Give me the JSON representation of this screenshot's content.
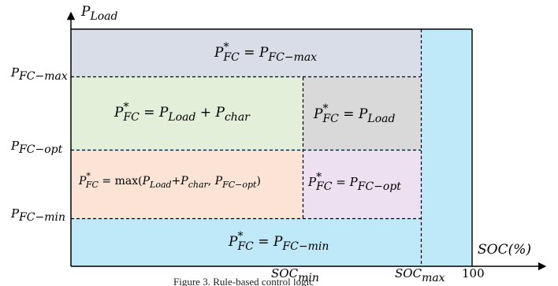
{
  "axes": {
    "y_label": {
      "base": "P",
      "sub": "Load"
    },
    "x_label": "SOC(%)",
    "y_ticks": {
      "fc_max": {
        "base": "P",
        "sub": "FC−max"
      },
      "fc_opt": {
        "base": "P",
        "sub": "FC−opt"
      },
      "fc_min": {
        "base": "P",
        "sub": "FC−min"
      }
    },
    "x_ticks": {
      "soc_min": {
        "base": "SOC",
        "sub": "min"
      },
      "soc_max": {
        "base": "SOC",
        "sub": "max"
      },
      "hundred": "100"
    }
  },
  "regions": {
    "top": {
      "lhs": "P",
      "lhs_sup": "*",
      "lhs_sub": "FC",
      "eq": " = ",
      "rhs": "P",
      "rhs_sub": "FC−max"
    },
    "mid_left": {
      "lhs": "P",
      "lhs_sup": "*",
      "lhs_sub": "FC",
      "eq": " = ",
      "r1": "P",
      "r1_sub": "Load",
      "plus": " + ",
      "r2": "P",
      "r2_sub": "char"
    },
    "mid_right": {
      "lhs": "P",
      "lhs_sup": "*",
      "lhs_sub": "FC",
      "eq": " = ",
      "rhs": "P",
      "rhs_sub": "Load"
    },
    "low_left": {
      "lhs": "P",
      "lhs_sup": "*",
      "lhs_sub": "FC",
      "eq": " = max(",
      "a": "P",
      "a_sub": "Load",
      "plus": "+",
      "b": "P",
      "b_sub": "char",
      "comma": ", ",
      "c": "P",
      "c_sub": "FC−opt",
      "close": ")"
    },
    "low_right": {
      "lhs": "P",
      "lhs_sup": "*",
      "lhs_sub": "FC",
      "eq": " = ",
      "rhs": "P",
      "rhs_sub": "FC−opt"
    },
    "bottom": {
      "lhs": "P",
      "lhs_sup": "*",
      "lhs_sub": "FC",
      "eq": " = ",
      "rhs": "P",
      "rhs_sub": "FC−min"
    }
  },
  "colors": {
    "top": "#d9dde8",
    "mid_left": "#e3efd9",
    "mid_right": "#d9d9d9",
    "low_left": "#fbe4d5",
    "low_right": "#ede0f0",
    "cyan": "#bfe9f8"
  },
  "caption": "Figure 3. Rule-based control logic"
}
